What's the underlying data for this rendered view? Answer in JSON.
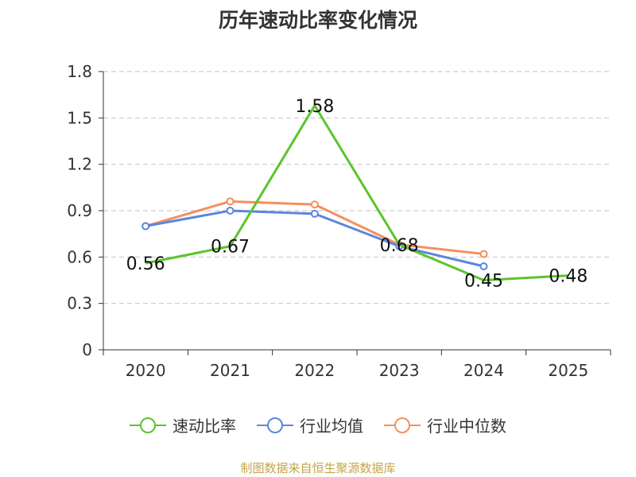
{
  "chart_data": {
    "type": "line",
    "title": "历年速动比率变化情况",
    "categories": [
      "2020",
      "2021",
      "2022",
      "2023",
      "2024",
      "2025"
    ],
    "ylim": [
      0,
      1.8
    ],
    "yticks": [
      "0",
      "0.3",
      "0.6",
      "0.9",
      "1.2",
      "1.5",
      "1.8"
    ],
    "grid": true,
    "legend_position": "bottom",
    "series": [
      {
        "name": "速动比率",
        "color": "#5cc42c",
        "values": [
          0.56,
          0.67,
          1.58,
          0.68,
          0.45,
          0.48
        ],
        "labels": [
          "0.56",
          "0.67",
          "1.58",
          "0.68",
          "0.45",
          "0.48"
        ],
        "markers": false
      },
      {
        "name": "行业均值",
        "color": "#5b86de",
        "values": [
          0.8,
          0.9,
          0.88,
          0.67,
          0.54,
          null
        ],
        "markers": true
      },
      {
        "name": "行业中位数",
        "color": "#f4905e",
        "values": [
          0.8,
          0.96,
          0.94,
          0.68,
          0.62,
          null
        ],
        "markers": true
      }
    ]
  },
  "source": "制图数据来自恒生聚源数据库"
}
